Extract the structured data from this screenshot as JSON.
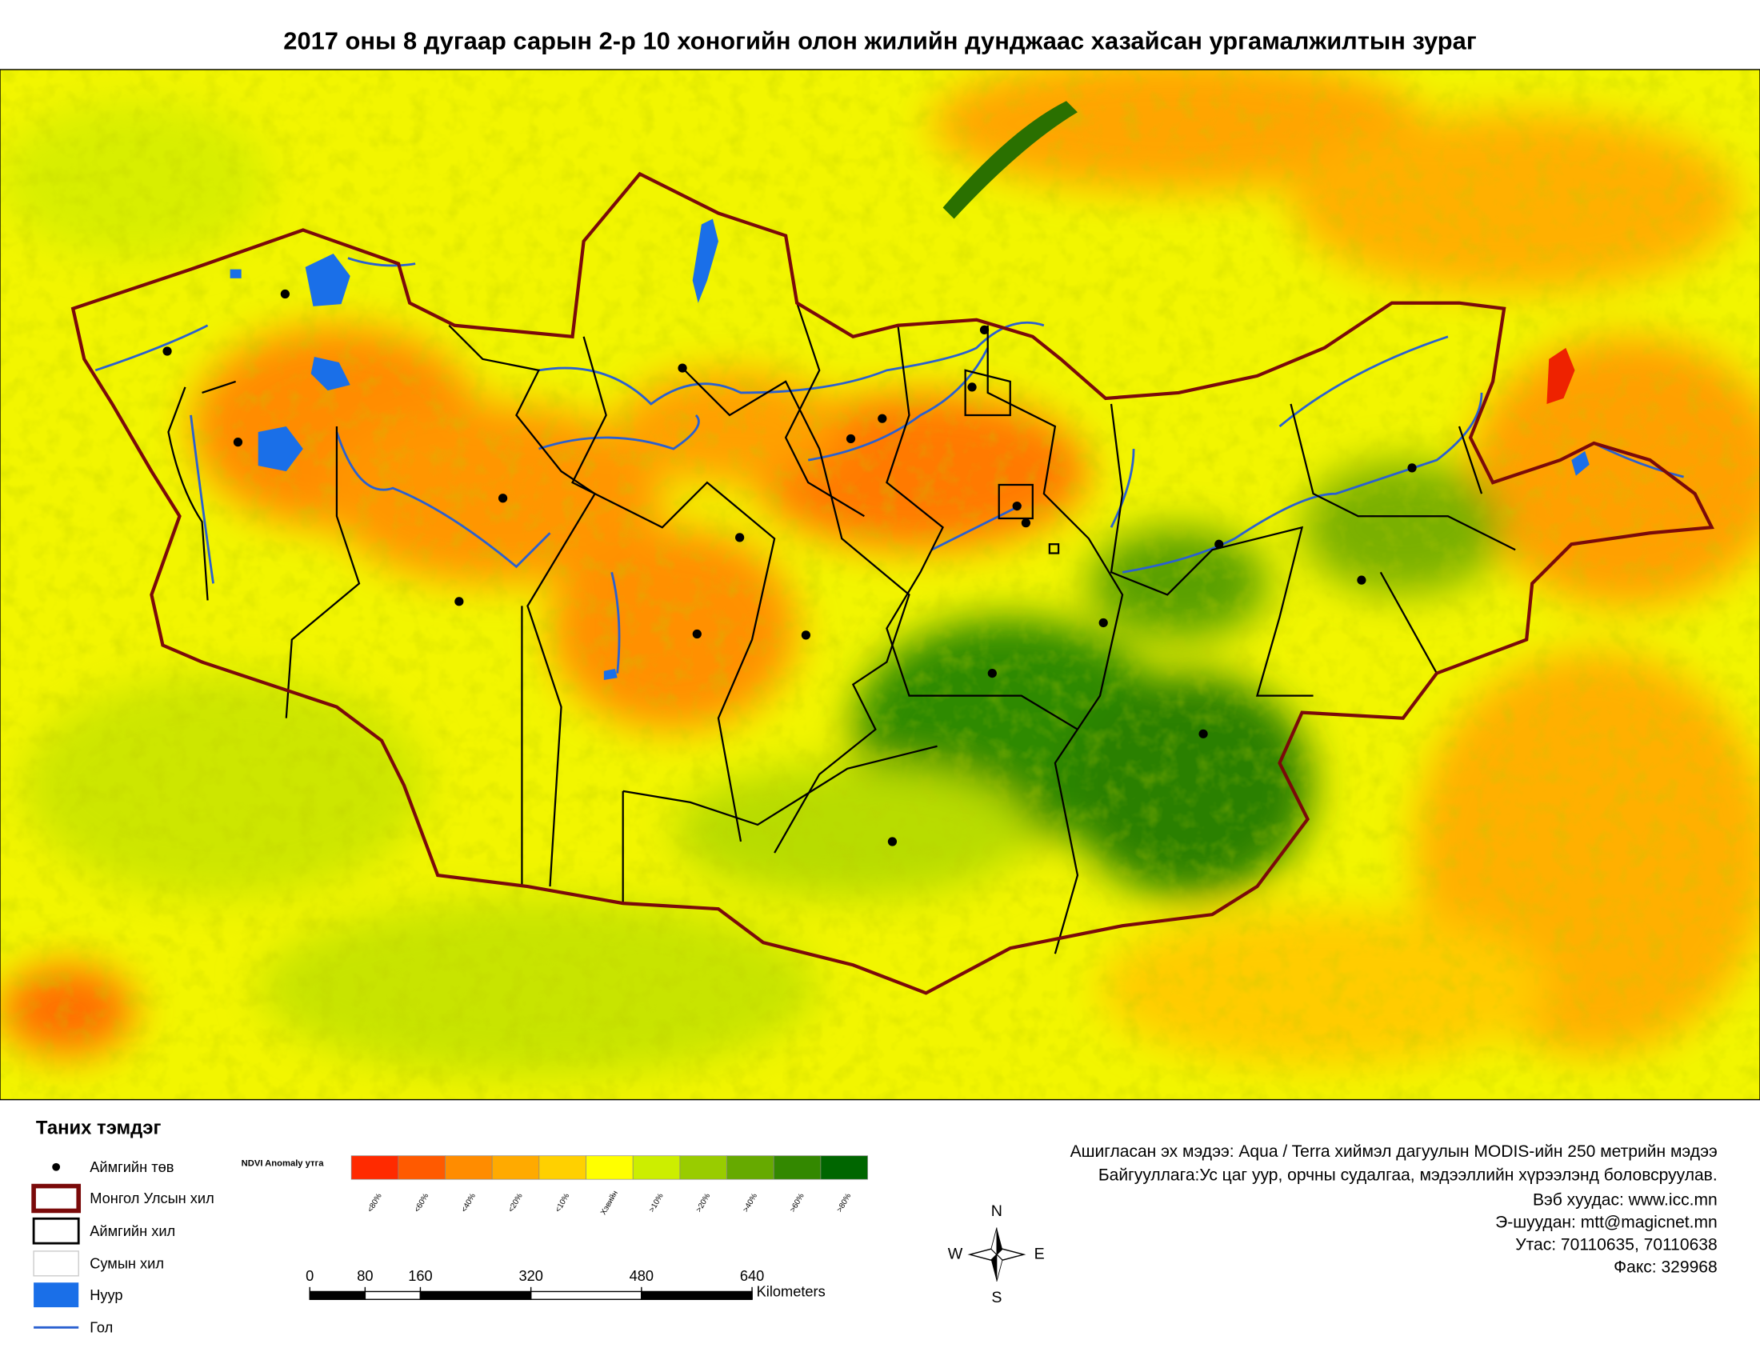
{
  "title": "2017 оны 8 дугаар сарын 2-р 10 хоногийн олон жилийн дунджаас хазайсан ургамалжилтын зураг",
  "legend": {
    "title": "Таних тэмдэг",
    "items": [
      {
        "label": "Аймгийн төв"
      },
      {
        "label": "Монгол Улсын хил"
      },
      {
        "label": "Аймгийн хил"
      },
      {
        "label": "Сумын хил"
      },
      {
        "label": "Нуур"
      },
      {
        "label": "Гол"
      }
    ]
  },
  "ndvi": {
    "title": "NDVI Anomaly утга",
    "classes": [
      {
        "label": "<80%",
        "color": "#ff2a00"
      },
      {
        "label": "<60%",
        "color": "#ff5a00"
      },
      {
        "label": "<40%",
        "color": "#ff8c00"
      },
      {
        "label": "<20%",
        "color": "#ffaa00"
      },
      {
        "label": "<10%",
        "color": "#ffd000"
      },
      {
        "label": "Хэвийн",
        "color": "#ffff00"
      },
      {
        "label": ">10%",
        "color": "#ccee00"
      },
      {
        "label": ">20%",
        "color": "#99cc00"
      },
      {
        "label": ">40%",
        "color": "#66aa00"
      },
      {
        "label": ">60%",
        "color": "#338800"
      },
      {
        "label": ">80%",
        "color": "#006600"
      }
    ]
  },
  "scale_bar": {
    "ticks": [
      0,
      80,
      160,
      320,
      480,
      640
    ],
    "unit": "Kilometers"
  },
  "info": [
    "Ашигласан эх мэдээ: Aqua / Terra хиймэл дагуулын MODIS-ийн 250 метрийн мэдээ",
    "Байгууллага:Ус цаг уур, орчны судалгаа, мэдээллийн хүрээлэнд боловсруулав.",
    "Вэб хуудас: www.icc.mn",
    "Э-шуудан: mtt@magicnet.mn",
    "Утас: 70110635, 70110638",
    "Факс: 329968"
  ],
  "compass": {
    "n": "N",
    "e": "E",
    "s": "S",
    "w": "W"
  }
}
